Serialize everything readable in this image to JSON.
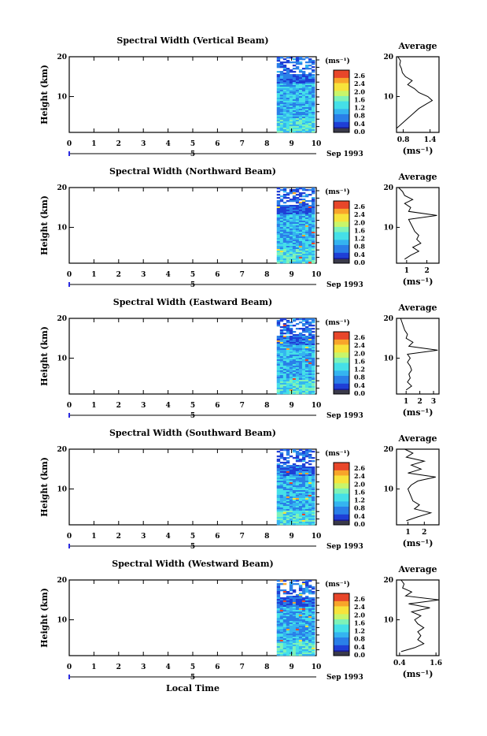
{
  "chart_data": [
    {
      "type": "heatmap",
      "title": "Spectral Width (Vertical Beam)",
      "ylabel": "Height (km)",
      "xlabel": "",
      "x_ticks": [
        "0",
        "1",
        "2",
        "3",
        "4",
        "5",
        "6",
        "7",
        "8",
        "9",
        "10"
      ],
      "y_ticks": [
        "20",
        "10"
      ],
      "xlim": [
        0,
        10
      ],
      "ylim": [
        1,
        20
      ],
      "date_label": "Sep 1993",
      "date_marker": "5",
      "data_start_x": 8.4,
      "colorbar": {
        "unit": "(ms⁻¹)",
        "labels": [
          "2.6",
          "2.4",
          "2.0",
          "1.6",
          "1.2",
          "0.8",
          "0.4",
          "0.0"
        ]
      },
      "average": {
        "title": "Average",
        "unit": "(ms⁻¹)",
        "x_ticks": [
          "0.8",
          "1.4"
        ],
        "xlim": [
          0.65,
          1.6
        ],
        "y_ticks": [
          "20",
          "10"
        ],
        "profile": [
          [
            0.62,
            2
          ],
          [
            0.75,
            3
          ],
          [
            0.85,
            4
          ],
          [
            0.95,
            5
          ],
          [
            1.05,
            6
          ],
          [
            1.15,
            7
          ],
          [
            1.3,
            8
          ],
          [
            1.45,
            9
          ],
          [
            1.35,
            10
          ],
          [
            1.15,
            11
          ],
          [
            1.05,
            12
          ],
          [
            0.9,
            13
          ],
          [
            1.0,
            14
          ],
          [
            0.85,
            15
          ],
          [
            0.78,
            16
          ],
          [
            0.76,
            17
          ],
          [
            0.72,
            18
          ],
          [
            0.74,
            19
          ],
          [
            0.68,
            20
          ]
        ]
      }
    },
    {
      "type": "heatmap",
      "title": "Spectral Width (Northward Beam)",
      "ylabel": "Height (km)",
      "xlabel": "",
      "x_ticks": [
        "0",
        "1",
        "2",
        "3",
        "4",
        "5",
        "6",
        "7",
        "8",
        "9",
        "10"
      ],
      "y_ticks": [
        "20",
        "10"
      ],
      "xlim": [
        0,
        10
      ],
      "ylim": [
        1,
        20
      ],
      "date_label": "Sep 1993",
      "date_marker": "5",
      "data_start_x": 8.4,
      "colorbar": {
        "unit": "(ms⁻¹)",
        "labels": [
          "2.6",
          "2.4",
          "2.0",
          "1.6",
          "1.2",
          "0.8",
          "0.4",
          "0.0"
        ]
      },
      "average": {
        "title": "Average",
        "unit": "(ms⁻¹)",
        "x_ticks": [
          "1",
          "2"
        ],
        "xlim": [
          0.5,
          2.6
        ],
        "y_ticks": [
          "20",
          "10"
        ],
        "profile": [
          [
            0.9,
            2
          ],
          [
            1.2,
            3
          ],
          [
            1.6,
            4
          ],
          [
            1.3,
            5
          ],
          [
            1.7,
            6
          ],
          [
            1.5,
            7
          ],
          [
            1.6,
            8
          ],
          [
            1.4,
            9
          ],
          [
            1.3,
            10
          ],
          [
            1.2,
            11
          ],
          [
            1.1,
            12
          ],
          [
            2.5,
            13
          ],
          [
            1.1,
            14
          ],
          [
            1.2,
            15
          ],
          [
            0.9,
            16
          ],
          [
            1.3,
            17
          ],
          [
            0.9,
            18
          ],
          [
            0.8,
            19
          ],
          [
            0.6,
            20
          ]
        ]
      }
    },
    {
      "type": "heatmap",
      "title": "Spectral Width (Eastward Beam)",
      "ylabel": "Height (km)",
      "xlabel": "",
      "x_ticks": [
        "0",
        "1",
        "2",
        "3",
        "4",
        "5",
        "6",
        "7",
        "8",
        "9",
        "10"
      ],
      "y_ticks": [
        "20",
        "10"
      ],
      "xlim": [
        0,
        10
      ],
      "ylim": [
        1,
        20
      ],
      "date_label": "Sep 1993",
      "date_marker": "5",
      "data_start_x": 8.4,
      "colorbar": {
        "unit": "(ms⁻¹)",
        "labels": [
          "2.6",
          "2.4",
          "2.0",
          "1.6",
          "1.2",
          "0.8",
          "0.4",
          "0.0"
        ]
      },
      "average": {
        "title": "Average",
        "unit": "(ms⁻¹)",
        "x_ticks": [
          "1",
          "2",
          "3"
        ],
        "xlim": [
          0.3,
          3.4
        ],
        "y_ticks": [
          "20",
          "10"
        ],
        "profile": [
          [
            1.0,
            2
          ],
          [
            1.4,
            3
          ],
          [
            1.1,
            4
          ],
          [
            1.3,
            5
          ],
          [
            1.2,
            6
          ],
          [
            1.4,
            7
          ],
          [
            1.3,
            8
          ],
          [
            1.1,
            9
          ],
          [
            1.3,
            10
          ],
          [
            1.1,
            11
          ],
          [
            3.3,
            12
          ],
          [
            1.2,
            13
          ],
          [
            1.5,
            14
          ],
          [
            1.0,
            15
          ],
          [
            1.1,
            16
          ],
          [
            0.9,
            17
          ],
          [
            0.8,
            18
          ],
          [
            0.7,
            19
          ],
          [
            0.6,
            20
          ]
        ]
      }
    },
    {
      "type": "heatmap",
      "title": "Spectral Width (Southward Beam)",
      "ylabel": "Height (km)",
      "xlabel": "",
      "x_ticks": [
        "0",
        "1",
        "2",
        "3",
        "4",
        "5",
        "6",
        "7",
        "8",
        "9",
        "10"
      ],
      "y_ticks": [
        "20",
        "10"
      ],
      "xlim": [
        0,
        10
      ],
      "ylim": [
        1,
        20
      ],
      "date_label": "Sep 1993",
      "date_marker": "5",
      "data_start_x": 8.4,
      "colorbar": {
        "unit": "(ms⁻¹)",
        "labels": [
          "2.6",
          "2.4",
          "2.0",
          "1.6",
          "1.2",
          "0.8",
          "0.4",
          "0.0"
        ]
      },
      "average": {
        "title": "Average",
        "unit": "(ms⁻¹)",
        "x_ticks": [
          "1",
          "2"
        ],
        "xlim": [
          0.3,
          2.9
        ],
        "y_ticks": [
          "20",
          "10"
        ],
        "profile": [
          [
            0.9,
            2
          ],
          [
            1.6,
            3
          ],
          [
            2.4,
            4
          ],
          [
            1.4,
            5
          ],
          [
            1.7,
            6
          ],
          [
            1.3,
            7
          ],
          [
            1.2,
            8
          ],
          [
            1.1,
            9
          ],
          [
            1.0,
            10
          ],
          [
            1.2,
            11
          ],
          [
            1.6,
            12
          ],
          [
            2.7,
            13
          ],
          [
            1.0,
            14
          ],
          [
            1.8,
            15
          ],
          [
            1.2,
            16
          ],
          [
            2.0,
            17
          ],
          [
            0.9,
            18
          ],
          [
            1.3,
            19
          ],
          [
            0.8,
            20
          ]
        ]
      }
    },
    {
      "type": "heatmap",
      "title": "Spectral Width (Westward Beam)",
      "ylabel": "Height (km)",
      "xlabel": "Local Time",
      "x_ticks": [
        "0",
        "1",
        "2",
        "3",
        "4",
        "5",
        "6",
        "7",
        "8",
        "9",
        "10"
      ],
      "y_ticks": [
        "20",
        "10"
      ],
      "xlim": [
        0,
        10
      ],
      "ylim": [
        1,
        20
      ],
      "date_label": "Sep 1993",
      "date_marker": "5",
      "data_start_x": 8.4,
      "colorbar": {
        "unit": "(ms⁻¹)",
        "labels": [
          "2.6",
          "2.4",
          "2.0",
          "1.6",
          "1.2",
          "0.8",
          "0.4",
          "0.0"
        ]
      },
      "average": {
        "title": "Average",
        "unit": "(ms⁻¹)",
        "x_ticks": [
          "0.4",
          "1.6"
        ],
        "xlim": [
          0.3,
          1.7
        ],
        "y_ticks": [
          "20",
          "10"
        ],
        "profile": [
          [
            0.45,
            2
          ],
          [
            0.9,
            3
          ],
          [
            1.2,
            4
          ],
          [
            1.0,
            5
          ],
          [
            1.1,
            6
          ],
          [
            1.0,
            7
          ],
          [
            1.2,
            8
          ],
          [
            1.0,
            9
          ],
          [
            0.9,
            10
          ],
          [
            1.1,
            11
          ],
          [
            0.8,
            12
          ],
          [
            1.4,
            13
          ],
          [
            0.7,
            14
          ],
          [
            1.7,
            15
          ],
          [
            0.6,
            16
          ],
          [
            0.8,
            17
          ],
          [
            0.5,
            18
          ],
          [
            0.55,
            19
          ],
          [
            0.45,
            20
          ]
        ]
      }
    }
  ],
  "colors": {
    "colormap": [
      "#1a1a8c",
      "#1f3fd6",
      "#2a7fe8",
      "#35b4f0",
      "#45e0e8",
      "#7ef2b8",
      "#c8f56a",
      "#f7e33b",
      "#f8a52a",
      "#e8462a"
    ],
    "colorbar_bottom": "#3a3a4a",
    "date_marker": "#2a2ae0"
  }
}
